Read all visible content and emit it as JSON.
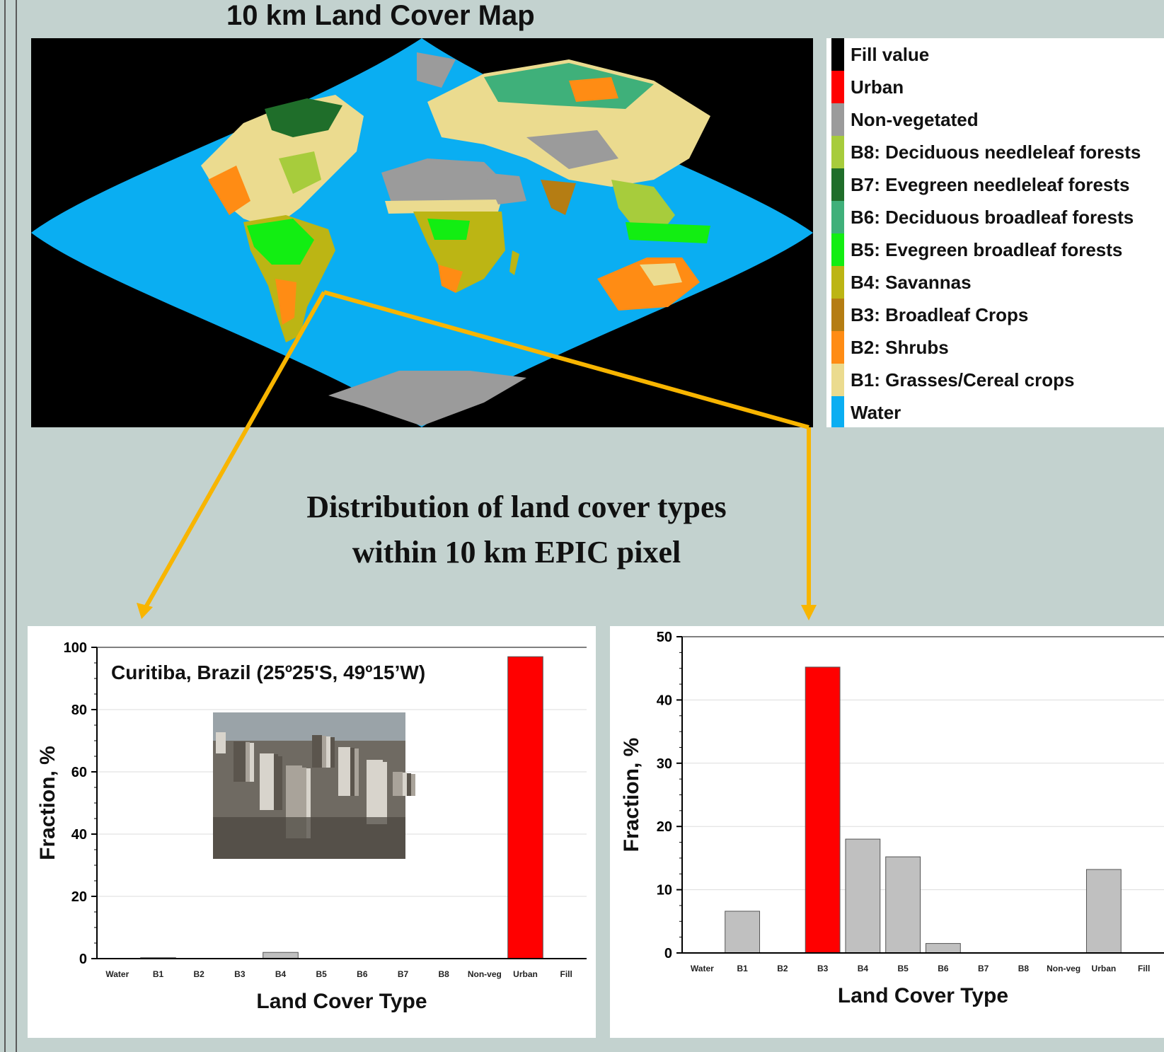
{
  "map": {
    "title": "10 km Land Cover Map",
    "legend": [
      {
        "label": "Fill value",
        "color": "#000000"
      },
      {
        "label": "Urban",
        "color": "#ff0000"
      },
      {
        "label": "Non-vegetated",
        "color": "#9b9b9b"
      },
      {
        "label": "B8: Deciduous needleleaf forests",
        "color": "#a7cc3c"
      },
      {
        "label": "B7: Evegreen needleleaf forests",
        "color": "#1f6e2a"
      },
      {
        "label": "B6: Deciduous broadleaf forests",
        "color": "#3fb07a"
      },
      {
        "label": "B5: Evegreen broadleaf forests",
        "color": "#12ee12"
      },
      {
        "label": "B4: Savannas",
        "color": "#bcb514"
      },
      {
        "label": "B3: Broadleaf Crops",
        "color": "#b57d13"
      },
      {
        "label": "B2: Shrubs",
        "color": "#ff8c14"
      },
      {
        "label": "B1: Grasses/Cereal crops",
        "color": "#ebdb8f"
      },
      {
        "label": "Water",
        "color": "#0aaef2"
      }
    ]
  },
  "distribution_heading": {
    "line1": "Distribution of land cover types",
    "line2": "within 10 km EPIC pixel"
  },
  "colors": {
    "background": "#c3d2cf",
    "arrow": "#f8b500",
    "highlight_bar": "#ff0000",
    "bar": "#c0c0c0",
    "water": "#0aaef2"
  },
  "chart_data": [
    {
      "type": "bar",
      "annotation": "Curitiba, Brazil (25º25'S, 49º15’W)",
      "xlabel": "Land Cover Type",
      "ylabel": "Fraction, %",
      "ylim": [
        0,
        100
      ],
      "yticks": [
        0,
        20,
        40,
        60,
        80,
        100
      ],
      "categories": [
        "Water",
        "B1",
        "B2",
        "B3",
        "B4",
        "B5",
        "B6",
        "B7",
        "B8",
        "Non-veg",
        "Urban",
        "Fill"
      ],
      "values": [
        0,
        0.3,
        0,
        0,
        2,
        0,
        0,
        0,
        0,
        0,
        97,
        0
      ],
      "highlight_category": "Urban",
      "grid": "horizontal"
    },
    {
      "type": "bar",
      "xlabel": "Land Cover Type",
      "ylabel": "Fraction, %",
      "ylim": [
        0,
        50
      ],
      "yticks": [
        0,
        10,
        20,
        30,
        40,
        50
      ],
      "categories": [
        "Water",
        "B1",
        "B2",
        "B3",
        "B4",
        "B5",
        "B6",
        "B7",
        "B8",
        "Non-veg",
        "Urban",
        "Fill"
      ],
      "values": [
        0,
        6.6,
        0,
        45.2,
        18,
        15.2,
        1.5,
        0,
        0,
        0,
        13.2,
        0
      ],
      "highlight_category": "B3",
      "grid": "horizontal"
    }
  ]
}
